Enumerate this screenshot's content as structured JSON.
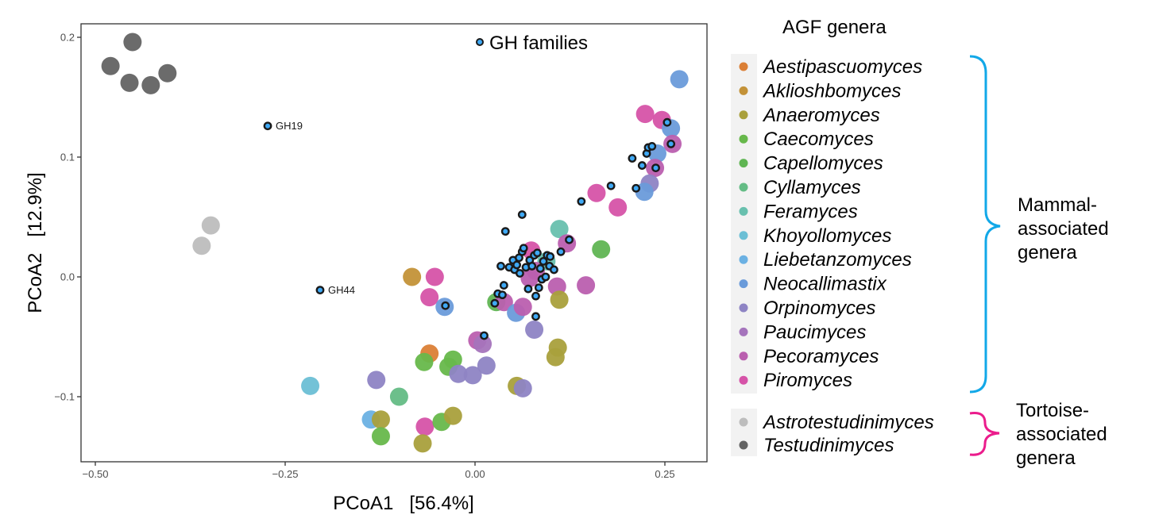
{
  "chart_data": {
    "type": "scatter",
    "title": "",
    "xlabel": "PCoA1   [56.4%]",
    "ylabel": "PCoA2   [12.9%]",
    "xlim": [
      -0.52,
      0.305
    ],
    "ylim": [
      -0.154,
      0.21
    ],
    "xticks": [
      -0.5,
      -0.25,
      0.0,
      0.25
    ],
    "xtick_labels": [
      "−0.50",
      "−0.25",
      "0.00",
      "0.25"
    ],
    "yticks": [
      -0.1,
      0.0,
      0.1,
      0.2
    ],
    "ytick_labels": [
      "−0.1",
      "0.0",
      "0.1",
      "0.2"
    ],
    "grid": false,
    "legend_title": "AGF genera",
    "genera": [
      {
        "name": "Aestipascuomyces",
        "color": "#DB7F36",
        "group": "mammal"
      },
      {
        "name": "Aklioshbomyces",
        "color": "#C39238",
        "group": "mammal"
      },
      {
        "name": "Anaeromyces",
        "color": "#A9A03C",
        "group": "mammal"
      },
      {
        "name": "Caecomyces",
        "color": "#67B84B",
        "group": "mammal"
      },
      {
        "name": "Capellomyces",
        "color": "#60B553",
        "group": "mammal"
      },
      {
        "name": "Cyllamyces",
        "color": "#64BC85",
        "group": "mammal"
      },
      {
        "name": "Feramyces",
        "color": "#68C0AE",
        "group": "mammal"
      },
      {
        "name": "Khoyollomyces",
        "color": "#6BBFD5",
        "group": "mammal"
      },
      {
        "name": "Liebetanzomyces",
        "color": "#6BB1E3",
        "group": "mammal"
      },
      {
        "name": "Neocallimastix",
        "color": "#6A9BDA",
        "group": "mammal"
      },
      {
        "name": "Orpinomyces",
        "color": "#8E84C4",
        "group": "mammal"
      },
      {
        "name": "Paucimyces",
        "color": "#A574BC",
        "group": "mammal"
      },
      {
        "name": "Pecoramyces",
        "color": "#BA5FAF",
        "group": "mammal"
      },
      {
        "name": "Piromyces",
        "color": "#D653A8",
        "group": "mammal"
      },
      {
        "name": "Astrotestudinimyces",
        "color": "#BDBDBD",
        "group": "tortoise"
      },
      {
        "name": "Testudinimyces",
        "color": "#636363",
        "group": "tortoise"
      }
    ],
    "genus_points": [
      {
        "genus": "Testudinimyces",
        "x": -0.451,
        "y": 0.196
      },
      {
        "genus": "Testudinimyces",
        "x": -0.48,
        "y": 0.176
      },
      {
        "genus": "Testudinimyces",
        "x": -0.455,
        "y": 0.162
      },
      {
        "genus": "Testudinimyces",
        "x": -0.427,
        "y": 0.16
      },
      {
        "genus": "Testudinimyces",
        "x": -0.405,
        "y": 0.17
      },
      {
        "genus": "Astrotestudinimyces",
        "x": -0.348,
        "y": 0.043
      },
      {
        "genus": "Astrotestudinimyces",
        "x": -0.36,
        "y": 0.026
      },
      {
        "genus": "Neocallimastix",
        "x": 0.269,
        "y": 0.165
      },
      {
        "genus": "Piromyces",
        "x": 0.224,
        "y": 0.136
      },
      {
        "genus": "Piromyces",
        "x": 0.246,
        "y": 0.131
      },
      {
        "genus": "Neocallimastix",
        "x": 0.258,
        "y": 0.124
      },
      {
        "genus": "Pecoramyces",
        "x": 0.26,
        "y": 0.111
      },
      {
        "genus": "Neocallimastix",
        "x": 0.24,
        "y": 0.103
      },
      {
        "genus": "Pecoramyces",
        "x": 0.237,
        "y": 0.091
      },
      {
        "genus": "Orpinomyces",
        "x": 0.23,
        "y": 0.078
      },
      {
        "genus": "Neocallimastix",
        "x": 0.223,
        "y": 0.071
      },
      {
        "genus": "Piromyces",
        "x": 0.16,
        "y": 0.07
      },
      {
        "genus": "Piromyces",
        "x": 0.188,
        "y": 0.058
      },
      {
        "genus": "Feramyces",
        "x": 0.111,
        "y": 0.04
      },
      {
        "genus": "Capellomyces",
        "x": 0.166,
        "y": 0.023
      },
      {
        "genus": "Pecoramyces",
        "x": 0.121,
        "y": 0.028
      },
      {
        "genus": "Pecoramyces",
        "x": 0.146,
        "y": -0.007
      },
      {
        "genus": "Feramyces",
        "x": 0.094,
        "y": 0.013
      },
      {
        "genus": "Piromyces",
        "x": 0.074,
        "y": 0.022
      },
      {
        "genus": "Pecoramyces",
        "x": 0.08,
        "y": 0.005
      },
      {
        "genus": "Pecoramyces",
        "x": 0.072,
        "y": -0.001
      },
      {
        "genus": "Pecoramyces",
        "x": 0.108,
        "y": -0.008
      },
      {
        "genus": "Anaeromyces",
        "x": 0.111,
        "y": -0.019
      },
      {
        "genus": "Aklioshbomyces",
        "x": -0.083,
        "y": 0.0
      },
      {
        "genus": "Piromyces",
        "x": -0.053,
        "y": 0.0
      },
      {
        "genus": "Piromyces",
        "x": -0.06,
        "y": -0.017
      },
      {
        "genus": "Neocallimastix",
        "x": -0.04,
        "y": -0.025
      },
      {
        "genus": "Capellomyces",
        "x": 0.028,
        "y": -0.021
      },
      {
        "genus": "Pecoramyces",
        "x": 0.038,
        "y": -0.021
      },
      {
        "genus": "Neocallimastix",
        "x": 0.054,
        "y": -0.03
      },
      {
        "genus": "Pecoramyces",
        "x": 0.063,
        "y": -0.025
      },
      {
        "genus": "Orpinomyces",
        "x": 0.078,
        "y": -0.044
      },
      {
        "genus": "Pecoramyces",
        "x": 0.003,
        "y": -0.053
      },
      {
        "genus": "Paucimyces",
        "x": 0.01,
        "y": -0.056
      },
      {
        "genus": "Anaeromyces",
        "x": 0.109,
        "y": -0.059
      },
      {
        "genus": "Anaeromyces",
        "x": 0.106,
        "y": -0.067
      },
      {
        "genus": "Aestipascuomyces",
        "x": -0.06,
        "y": -0.064
      },
      {
        "genus": "Caecomyces",
        "x": -0.067,
        "y": -0.071
      },
      {
        "genus": "Caecomyces",
        "x": -0.029,
        "y": -0.069
      },
      {
        "genus": "Caecomyces",
        "x": -0.035,
        "y": -0.075
      },
      {
        "genus": "Orpinomyces",
        "x": -0.022,
        "y": -0.081
      },
      {
        "genus": "Orpinomyces",
        "x": -0.003,
        "y": -0.082
      },
      {
        "genus": "Orpinomyces",
        "x": 0.015,
        "y": -0.074
      },
      {
        "genus": "Anaeromyces",
        "x": 0.055,
        "y": -0.091
      },
      {
        "genus": "Orpinomyces",
        "x": 0.063,
        "y": -0.093
      },
      {
        "genus": "Khoyollomyces",
        "x": -0.217,
        "y": -0.091
      },
      {
        "genus": "Orpinomyces",
        "x": -0.13,
        "y": -0.086
      },
      {
        "genus": "Cyllamyces",
        "x": -0.1,
        "y": -0.1
      },
      {
        "genus": "Liebetanzomyces",
        "x": -0.137,
        "y": -0.119
      },
      {
        "genus": "Anaeromyces",
        "x": -0.124,
        "y": -0.119
      },
      {
        "genus": "Caecomyces",
        "x": -0.124,
        "y": -0.133
      },
      {
        "genus": "Piromyces",
        "x": -0.066,
        "y": -0.125
      },
      {
        "genus": "Caecomyces",
        "x": -0.044,
        "y": -0.121
      },
      {
        "genus": "Anaeromyces",
        "x": -0.029,
        "y": -0.116
      },
      {
        "genus": "Anaeromyces",
        "x": -0.069,
        "y": -0.139
      }
    ],
    "gh_series_name": "GH families",
    "gh_color": "#3FA9F5",
    "gh_points": [
      {
        "x": -0.273,
        "y": 0.126,
        "label": "GH19"
      },
      {
        "x": -0.204,
        "y": -0.011,
        "label": "GH44"
      },
      {
        "x": -0.039,
        "y": -0.024
      },
      {
        "x": 0.012,
        "y": -0.049
      },
      {
        "x": 0.026,
        "y": -0.022
      },
      {
        "x": 0.03,
        "y": -0.014
      },
      {
        "x": 0.036,
        "y": -0.015
      },
      {
        "x": 0.038,
        "y": -0.007
      },
      {
        "x": 0.034,
        "y": 0.009
      },
      {
        "x": 0.04,
        "y": 0.038
      },
      {
        "x": 0.045,
        "y": 0.008
      },
      {
        "x": 0.05,
        "y": 0.014
      },
      {
        "x": 0.052,
        "y": 0.006
      },
      {
        "x": 0.055,
        "y": 0.01
      },
      {
        "x": 0.059,
        "y": 0.003
      },
      {
        "x": 0.058,
        "y": 0.016
      },
      {
        "x": 0.062,
        "y": 0.021
      },
      {
        "x": 0.062,
        "y": 0.052
      },
      {
        "x": 0.064,
        "y": 0.024
      },
      {
        "x": 0.067,
        "y": 0.008
      },
      {
        "x": 0.07,
        "y": -0.01
      },
      {
        "x": 0.072,
        "y": 0.014
      },
      {
        "x": 0.075,
        "y": 0.009
      },
      {
        "x": 0.078,
        "y": 0.018
      },
      {
        "x": 0.08,
        "y": -0.016
      },
      {
        "x": 0.082,
        "y": 0.02
      },
      {
        "x": 0.084,
        "y": -0.009
      },
      {
        "x": 0.086,
        "y": 0.007
      },
      {
        "x": 0.088,
        "y": -0.002
      },
      {
        "x": 0.09,
        "y": 0.013
      },
      {
        "x": 0.093,
        "y": 0.0
      },
      {
        "x": 0.095,
        "y": 0.018
      },
      {
        "x": 0.098,
        "y": 0.009
      },
      {
        "x": 0.099,
        "y": 0.017
      },
      {
        "x": 0.08,
        "y": -0.033
      },
      {
        "x": 0.104,
        "y": 0.006
      },
      {
        "x": 0.113,
        "y": 0.021
      },
      {
        "x": 0.124,
        "y": 0.031
      },
      {
        "x": 0.14,
        "y": 0.063
      },
      {
        "x": 0.179,
        "y": 0.076
      },
      {
        "x": 0.207,
        "y": 0.099
      },
      {
        "x": 0.212,
        "y": 0.074
      },
      {
        "x": 0.22,
        "y": 0.093
      },
      {
        "x": 0.226,
        "y": 0.103
      },
      {
        "x": 0.228,
        "y": 0.108
      },
      {
        "x": 0.233,
        "y": 0.109
      },
      {
        "x": 0.238,
        "y": 0.091
      },
      {
        "x": 0.253,
        "y": 0.129
      },
      {
        "x": 0.258,
        "y": 0.111
      }
    ],
    "groups": [
      {
        "label": "Mammal-\nassociated\ngenera",
        "lines": [
          "Mammal-",
          "associated",
          "genera"
        ],
        "color": "#12A8E8"
      },
      {
        "label": "Tortoise-\nassociated\ngenera",
        "lines": [
          "Tortoise-",
          "associated",
          "genera"
        ],
        "color": "#EB1C8C"
      }
    ]
  }
}
